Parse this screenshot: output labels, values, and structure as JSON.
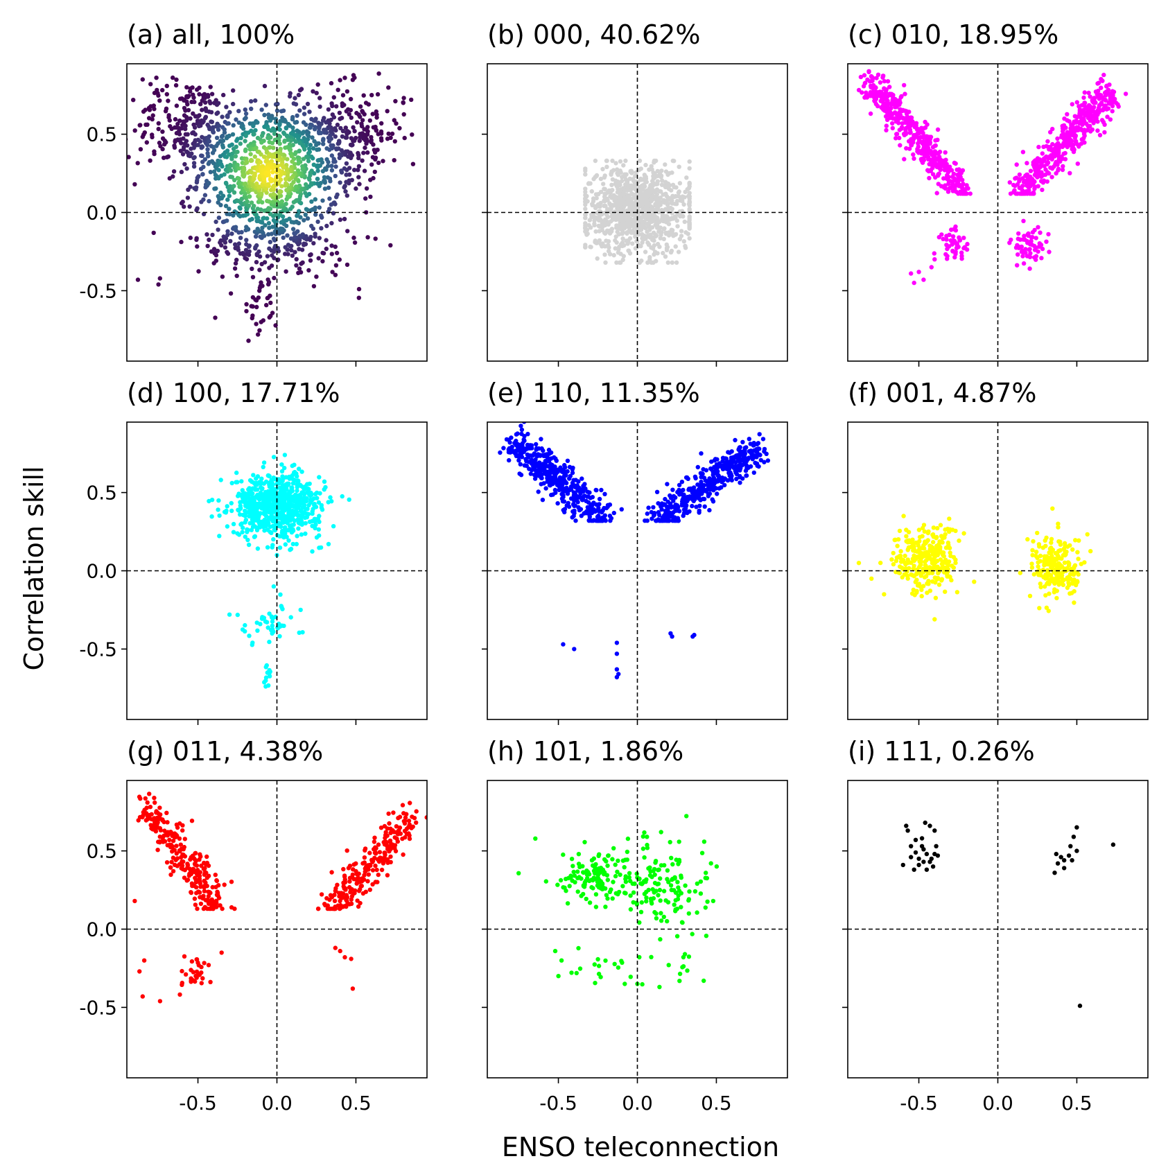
{
  "figure": {
    "xlabel": "ENSO teleconnection",
    "ylabel": "Correlation skill"
  },
  "chart_data": [
    {
      "type": "scatter",
      "title": "(a) all, 100%",
      "color": "#440154",
      "density_colormap": "viridis",
      "xlim": [
        -0.95,
        0.95
      ],
      "ylim": [
        -0.95,
        0.95
      ],
      "xticks": [
        -0.5,
        0.0,
        0.5
      ],
      "yticks": [
        -0.5,
        0.0,
        0.5
      ],
      "reference_lines": {
        "x": 0,
        "y": 0,
        "style": "dashed"
      },
      "clusters": [
        {
          "cx": -0.05,
          "cy": 0.25,
          "sx": 0.22,
          "sy": 0.22,
          "n": 900
        },
        {
          "cx": -0.55,
          "cy": 0.55,
          "sx": 0.18,
          "sy": 0.15,
          "n": 250
        },
        {
          "cx": 0.45,
          "cy": 0.5,
          "sx": 0.18,
          "sy": 0.15,
          "n": 250
        },
        {
          "cx": 0.0,
          "cy": -0.2,
          "sx": 0.25,
          "sy": 0.12,
          "n": 200
        },
        {
          "cx": -0.1,
          "cy": -0.6,
          "sx": 0.05,
          "sy": 0.1,
          "n": 30
        }
      ],
      "points": [
        [
          -0.85,
          0.85
        ],
        [
          -0.8,
          0.82
        ],
        [
          -0.9,
          0.18
        ],
        [
          -0.88,
          -0.43
        ],
        [
          -0.75,
          -0.46
        ],
        [
          -0.78,
          -0.13
        ],
        [
          0.8,
          0.7
        ],
        [
          0.85,
          0.72
        ],
        [
          0.43,
          0.86
        ],
        [
          -0.12,
          -0.78
        ],
        [
          -0.1,
          -0.7
        ],
        [
          0.52,
          -0.49
        ],
        [
          0.6,
          0.75
        ]
      ]
    },
    {
      "type": "scatter",
      "title": "(b) 000, 40.62%",
      "color": "#d3d3d3",
      "xlim": [
        -0.95,
        0.95
      ],
      "ylim": [
        -0.95,
        0.95
      ],
      "xticks": [
        -0.5,
        0.0,
        0.5
      ],
      "yticks": [
        -0.5,
        0.0,
        0.5
      ],
      "reference_lines": {
        "x": 0,
        "y": 0,
        "style": "dashed"
      },
      "clusters": [
        {
          "cx": 0.0,
          "cy": 0.02,
          "sx": 0.17,
          "sy": 0.14,
          "n": 1000,
          "box": [
            -0.33,
            0.33,
            -0.32,
            0.33
          ]
        }
      ],
      "points": []
    },
    {
      "type": "scatter",
      "title": "(c) 010, 18.95%",
      "color": "#ff00ff",
      "xlim": [
        -0.95,
        0.95
      ],
      "ylim": [
        -0.95,
        0.95
      ],
      "xticks": [
        -0.5,
        0.0,
        0.5
      ],
      "yticks": [
        -0.5,
        0.0,
        0.5
      ],
      "reference_lines": {
        "x": 0,
        "y": 0,
        "style": "dashed"
      },
      "clusters": [
        {
          "band": [
            [
              -0.82,
              0.84
            ],
            [
              -0.22,
              0.12
            ]
          ],
          "width": 0.12,
          "n": 450
        },
        {
          "band": [
            [
              0.72,
              0.78
            ],
            [
              0.12,
              0.12
            ]
          ],
          "width": 0.12,
          "n": 450
        },
        {
          "cx": -0.27,
          "cy": -0.2,
          "sx": 0.05,
          "sy": 0.05,
          "n": 45
        },
        {
          "cx": 0.2,
          "cy": -0.22,
          "sx": 0.06,
          "sy": 0.06,
          "n": 60
        }
      ],
      "points": [
        [
          -0.4,
          -0.3
        ],
        [
          -0.42,
          -0.35
        ],
        [
          -0.47,
          -0.43
        ],
        [
          -0.5,
          -0.38
        ],
        [
          -0.53,
          -0.45
        ],
        [
          -0.55,
          -0.39
        ]
      ]
    },
    {
      "type": "scatter",
      "title": "(d) 100, 17.71%",
      "color": "#00ffff",
      "xlim": [
        -0.95,
        0.95
      ],
      "ylim": [
        -0.95,
        0.95
      ],
      "xticks": [
        -0.5,
        0.0,
        0.5
      ],
      "yticks": [
        -0.5,
        0.0,
        0.5
      ],
      "reference_lines": {
        "x": 0,
        "y": 0,
        "style": "dashed"
      },
      "clusters": [
        {
          "cx": 0.0,
          "cy": 0.42,
          "sx": 0.14,
          "sy": 0.1,
          "n": 700
        },
        {
          "cx": -0.05,
          "cy": -0.35,
          "sx": 0.1,
          "sy": 0.06,
          "n": 45
        },
        {
          "cx": -0.07,
          "cy": -0.68,
          "sx": 0.02,
          "sy": 0.06,
          "n": 12
        }
      ],
      "points": [
        [
          0.0,
          0.1
        ],
        [
          -0.03,
          0.15
        ],
        [
          0.05,
          0.74
        ],
        [
          -0.02,
          -0.1
        ],
        [
          -0.3,
          -0.28
        ],
        [
          0.15,
          -0.25
        ]
      ]
    },
    {
      "type": "scatter",
      "title": "(e) 110, 11.35%",
      "color": "#0000ff",
      "xlim": [
        -0.95,
        0.95
      ],
      "ylim": [
        -0.95,
        0.95
      ],
      "xticks": [
        -0.5,
        0.0,
        0.5
      ],
      "yticks": [
        -0.5,
        0.0,
        0.5
      ],
      "reference_lines": {
        "x": 0,
        "y": 0,
        "style": "dashed"
      },
      "clusters": [
        {
          "band": [
            [
              -0.8,
              0.84
            ],
            [
              -0.2,
              0.32
            ]
          ],
          "width": 0.13,
          "n": 420
        },
        {
          "band": [
            [
              0.75,
              0.78
            ],
            [
              0.12,
              0.32
            ]
          ],
          "width": 0.13,
          "n": 420
        }
      ],
      "points": [
        [
          -0.47,
          -0.47
        ],
        [
          -0.4,
          -0.5
        ],
        [
          -0.13,
          -0.46
        ],
        [
          -0.13,
          -0.53
        ],
        [
          -0.13,
          -0.63
        ],
        [
          -0.12,
          -0.66
        ],
        [
          -0.13,
          -0.68
        ],
        [
          0.21,
          -0.4
        ],
        [
          0.22,
          -0.42
        ],
        [
          0.36,
          -0.41
        ],
        [
          0.35,
          -0.42
        ]
      ]
    },
    {
      "type": "scatter",
      "title": "(f) 001, 4.87%",
      "color": "#ffff00",
      "xlim": [
        -0.95,
        0.95
      ],
      "ylim": [
        -0.95,
        0.95
      ],
      "xticks": [
        -0.5,
        0.0,
        0.5
      ],
      "yticks": [
        -0.5,
        0.0,
        0.5
      ],
      "reference_lines": {
        "x": 0,
        "y": 0,
        "style": "dashed"
      },
      "clusters": [
        {
          "cx": -0.45,
          "cy": 0.07,
          "sx": 0.1,
          "sy": 0.11,
          "n": 280
        },
        {
          "cx": 0.38,
          "cy": 0.02,
          "sx": 0.08,
          "sy": 0.1,
          "n": 220
        }
      ],
      "points": [
        [
          -0.88,
          0.05
        ],
        [
          -0.8,
          -0.05
        ],
        [
          -0.72,
          -0.15
        ],
        [
          -0.4,
          -0.31
        ],
        [
          -0.15,
          -0.07
        ],
        [
          0.22,
          0.1
        ]
      ]
    },
    {
      "type": "scatter",
      "title": "(g) 011, 4.38%",
      "color": "#ff0000",
      "xlim": [
        -0.95,
        0.95
      ],
      "ylim": [
        -0.95,
        0.95
      ],
      "xticks": [
        -0.5,
        0.0,
        0.5
      ],
      "yticks": [
        -0.5,
        0.0,
        0.5
      ],
      "reference_lines": {
        "x": 0,
        "y": 0,
        "style": "dashed"
      },
      "clusters": [
        {
          "band": [
            [
              -0.82,
              0.78
            ],
            [
              -0.35,
              0.13
            ]
          ],
          "width": 0.14,
          "n": 260
        },
        {
          "band": [
            [
              0.85,
              0.7
            ],
            [
              0.33,
              0.13
            ]
          ],
          "width": 0.12,
          "n": 240
        },
        {
          "cx": -0.5,
          "cy": -0.29,
          "sx": 0.06,
          "sy": 0.05,
          "n": 30
        }
      ],
      "points": [
        [
          -0.9,
          0.18
        ],
        [
          -0.84,
          -0.2
        ],
        [
          -0.87,
          -0.27
        ],
        [
          -0.85,
          -0.43
        ],
        [
          -0.74,
          -0.46
        ],
        [
          -0.35,
          -0.15
        ],
        [
          0.37,
          -0.12
        ],
        [
          0.4,
          -0.14
        ],
        [
          0.43,
          -0.18
        ],
        [
          0.47,
          -0.19
        ],
        [
          0.48,
          -0.38
        ]
      ]
    },
    {
      "type": "scatter",
      "title": "(h) 101, 1.86%",
      "color": "#00ff00",
      "xlim": [
        -0.95,
        0.95
      ],
      "ylim": [
        -0.95,
        0.95
      ],
      "xticks": [
        -0.5,
        0.0,
        0.5
      ],
      "yticks": [
        -0.5,
        0.0,
        0.5
      ],
      "reference_lines": {
        "x": 0,
        "y": 0,
        "style": "dashed"
      },
      "clusters": [
        {
          "cx": -0.3,
          "cy": 0.33,
          "sx": 0.07,
          "sy": 0.06,
          "n": 70
        },
        {
          "cx": -0.1,
          "cy": 0.35,
          "sx": 0.2,
          "sy": 0.12,
          "n": 110
        },
        {
          "cx": 0.2,
          "cy": 0.28,
          "sx": 0.12,
          "sy": 0.14,
          "n": 90
        },
        {
          "cx": -0.2,
          "cy": -0.24,
          "sx": 0.15,
          "sy": 0.06,
          "n": 18
        },
        {
          "cx": 0.3,
          "cy": -0.2,
          "sx": 0.1,
          "sy": 0.06,
          "n": 12
        }
      ],
      "points": [
        [
          -0.5,
          -0.3
        ],
        [
          -0.52,
          -0.14
        ],
        [
          -0.48,
          -0.2
        ],
        [
          0.48,
          0.18
        ],
        [
          0.42,
          -0.33
        ],
        [
          -0.08,
          -0.35
        ],
        [
          0.14,
          -0.37
        ],
        [
          0.0,
          -0.35
        ],
        [
          0.15,
          0.62
        ]
      ]
    },
    {
      "type": "scatter",
      "title": "(i) 111, 0.26%",
      "color": "#000000",
      "xlim": [
        -0.95,
        0.95
      ],
      "ylim": [
        -0.95,
        0.95
      ],
      "xticks": [
        -0.5,
        0.0,
        0.5
      ],
      "yticks": [
        -0.5,
        0.0,
        0.5
      ],
      "reference_lines": {
        "x": 0,
        "y": 0,
        "style": "dashed"
      },
      "clusters": [],
      "points": [
        [
          -0.58,
          0.66
        ],
        [
          -0.57,
          0.63
        ],
        [
          -0.52,
          0.57
        ],
        [
          -0.55,
          0.53
        ],
        [
          -0.52,
          0.49
        ],
        [
          -0.48,
          0.53
        ],
        [
          -0.47,
          0.51
        ],
        [
          -0.45,
          0.48
        ],
        [
          -0.5,
          0.45
        ],
        [
          -0.55,
          0.46
        ],
        [
          -0.42,
          0.45
        ],
        [
          -0.4,
          0.48
        ],
        [
          -0.38,
          0.47
        ],
        [
          -0.43,
          0.43
        ],
        [
          -0.47,
          0.43
        ],
        [
          -0.5,
          0.41
        ],
        [
          -0.6,
          0.41
        ],
        [
          -0.53,
          0.38
        ],
        [
          -0.45,
          0.38
        ],
        [
          -0.41,
          0.4
        ],
        [
          -0.4,
          0.63
        ],
        [
          -0.43,
          0.66
        ],
        [
          -0.46,
          0.68
        ],
        [
          -0.48,
          0.58
        ],
        [
          -0.39,
          0.53
        ],
        [
          0.5,
          0.65
        ],
        [
          0.48,
          0.59
        ],
        [
          0.46,
          0.53
        ],
        [
          0.5,
          0.5
        ],
        [
          0.45,
          0.47
        ],
        [
          0.37,
          0.48
        ],
        [
          0.4,
          0.46
        ],
        [
          0.42,
          0.44
        ],
        [
          0.38,
          0.42
        ],
        [
          0.47,
          0.44
        ],
        [
          0.36,
          0.36
        ],
        [
          0.42,
          0.39
        ],
        [
          0.73,
          0.54
        ],
        [
          0.52,
          -0.49
        ]
      ]
    }
  ]
}
